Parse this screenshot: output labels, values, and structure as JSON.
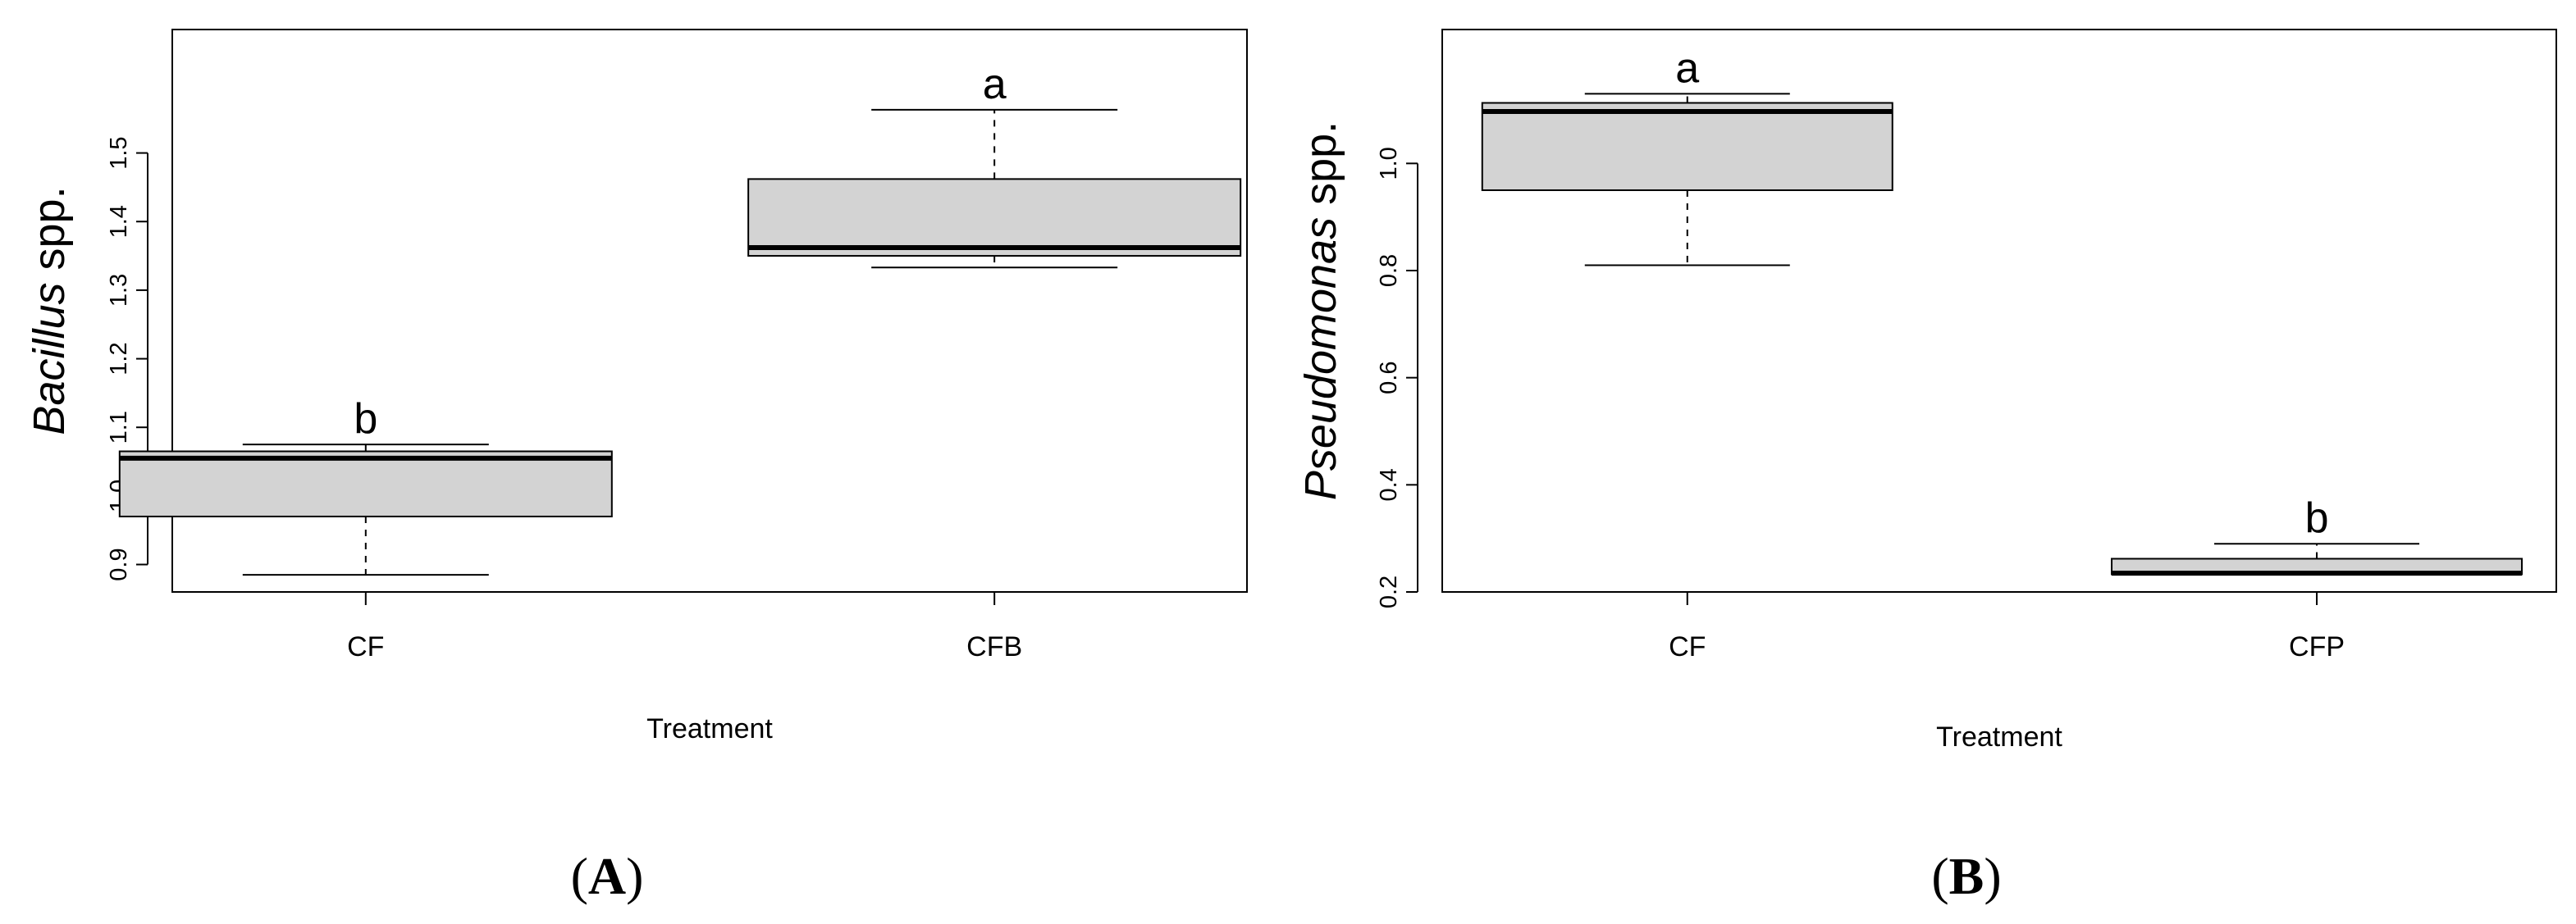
{
  "chart_data": [
    {
      "type": "boxplot",
      "panel_label": "A",
      "ylabel_italic": "Bacillus",
      "ylabel_rest": " spp.",
      "xlabel": "Treatment",
      "ylim": [
        0.86,
        1.68
      ],
      "yticks": [
        "0.9",
        "1.0",
        "1.1",
        "1.2",
        "1.3",
        "1.4",
        "1.5"
      ],
      "categories": [
        "CF",
        "CFB"
      ],
      "boxes": [
        {
          "category": "CF",
          "min": 0.885,
          "q1": 0.97,
          "median": 1.055,
          "q3": 1.065,
          "max": 1.075,
          "letter": "b"
        },
        {
          "category": "CFB",
          "min": 1.333,
          "q1": 1.35,
          "median": 1.362,
          "q3": 1.462,
          "max": 1.563,
          "letter": "a"
        }
      ],
      "grid": false,
      "box_fill": "#d3d3d3"
    },
    {
      "type": "boxplot",
      "panel_label": "B",
      "ylabel_italic": "Pseudomonas",
      "ylabel_rest": " spp.",
      "xlabel": "Treatment",
      "ylim": [
        0.2,
        1.25
      ],
      "yticks": [
        "0.2",
        "0.4",
        "0.6",
        "0.8",
        "1.0"
      ],
      "categories": [
        "CF",
        "CFP"
      ],
      "boxes": [
        {
          "category": "CF",
          "min": 0.81,
          "q1": 0.95,
          "median": 1.097,
          "q3": 1.113,
          "max": 1.13,
          "letter": "a"
        },
        {
          "category": "CFP",
          "min": 0.233,
          "q1": 0.233,
          "median": 0.235,
          "q3": 0.262,
          "max": 0.29,
          "letter": "b"
        }
      ],
      "grid": false,
      "box_fill": "#d3d3d3"
    }
  ]
}
